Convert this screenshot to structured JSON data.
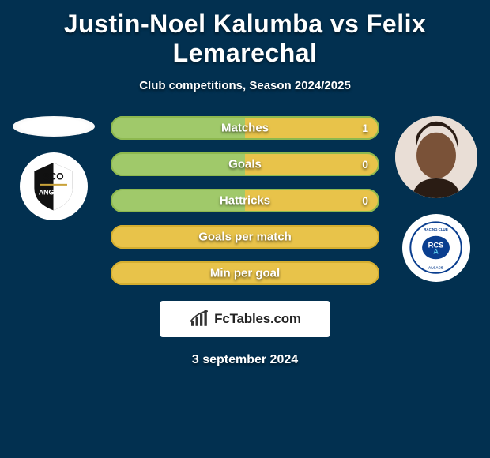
{
  "title": "Justin-Noel Kalumba vs Felix Lemarechal",
  "subtitle": "Club competitions, Season 2024/2025",
  "date": "3 september 2024",
  "logo_text": "FcTables.com",
  "colors": {
    "bg": "#023050",
    "bar_left": "#a0c96a",
    "bar_right": "#e8c34a",
    "bar_border": "#8db84f",
    "bar_border_full_yellow": "#d4ae30"
  },
  "bars": [
    {
      "label": "Matches",
      "left_pct": 50,
      "right_pct": 50,
      "value": "1",
      "border": "#8db84f"
    },
    {
      "label": "Goals",
      "left_pct": 50,
      "right_pct": 50,
      "value": "0",
      "border": "#8db84f"
    },
    {
      "label": "Hattricks",
      "left_pct": 50,
      "right_pct": 50,
      "value": "0",
      "border": "#8db84f"
    },
    {
      "label": "Goals per match",
      "left_pct": 0,
      "right_pct": 100,
      "value": "",
      "border": "#d4ae30"
    },
    {
      "label": "Min per goal",
      "left_pct": 0,
      "right_pct": 100,
      "value": "",
      "border": "#d4ae30"
    }
  ],
  "players": {
    "left": {
      "name": "Justin-Noel Kalumba",
      "club": "Angers SCO"
    },
    "right": {
      "name": "Felix Lemarechal",
      "club": "RC Strasbourg Alsace"
    }
  }
}
